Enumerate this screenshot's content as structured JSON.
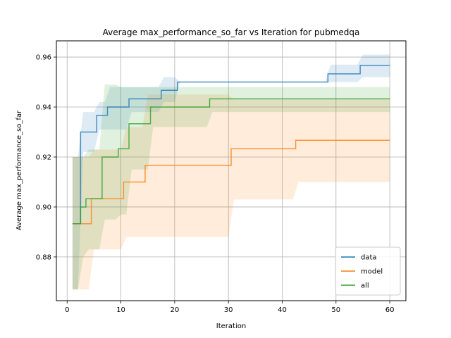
{
  "chart_data": {
    "type": "line",
    "title": "Average max_performance_so_far vs Iteration for pubmedqa",
    "xlabel": "Iteration",
    "ylabel": "Average max_performance_so_far",
    "xlim": [
      -2,
      63
    ],
    "ylim": [
      0.8625,
      0.9665
    ],
    "xticks": [
      0,
      10,
      20,
      30,
      40,
      50,
      60
    ],
    "yticks": [
      0.88,
      0.9,
      0.92,
      0.94,
      0.96
    ],
    "ytick_labels": [
      "0.88",
      "0.90",
      "0.92",
      "0.94",
      "0.96"
    ],
    "grid": true,
    "legend_position": "lower-right",
    "series": [
      {
        "name": "data",
        "color": "#1f77b4",
        "x": [
          1,
          2,
          3,
          4,
          5,
          6,
          7,
          8,
          9,
          10,
          11,
          12,
          13,
          14,
          15,
          16,
          17,
          18,
          19,
          20,
          21,
          22,
          23,
          24,
          25,
          26,
          27,
          28,
          29,
          30,
          31,
          32,
          33,
          34,
          35,
          36,
          37,
          38,
          39,
          40,
          41,
          42,
          43,
          44,
          45,
          46,
          47,
          48,
          49,
          50,
          51,
          52,
          53,
          54,
          55,
          56,
          57,
          58,
          59,
          60
        ],
        "y": [
          0.8933,
          0.8933,
          0.93,
          0.93,
          0.93,
          0.9367,
          0.9367,
          0.94,
          0.94,
          0.94,
          0.94,
          0.9433,
          0.9433,
          0.9433,
          0.9433,
          0.9433,
          0.9433,
          0.9467,
          0.9467,
          0.9467,
          0.95,
          0.95,
          0.95,
          0.95,
          0.95,
          0.95,
          0.95,
          0.95,
          0.95,
          0.95,
          0.95,
          0.95,
          0.95,
          0.95,
          0.95,
          0.95,
          0.95,
          0.95,
          0.95,
          0.95,
          0.95,
          0.95,
          0.95,
          0.95,
          0.95,
          0.95,
          0.95,
          0.95,
          0.9533,
          0.9533,
          0.9533,
          0.9533,
          0.9533,
          0.9533,
          0.9567,
          0.9567,
          0.9567,
          0.9567,
          0.9567,
          0.9567
        ],
        "lower": [
          0.867,
          0.867,
          0.922,
          0.922,
          0.922,
          0.931,
          0.931,
          0.931,
          0.931,
          0.931,
          0.931,
          0.938,
          0.938,
          0.938,
          0.938,
          0.938,
          0.938,
          0.942,
          0.942,
          0.942,
          0.95,
          0.95,
          0.95,
          0.95,
          0.95,
          0.95,
          0.95,
          0.95,
          0.95,
          0.95,
          0.95,
          0.95,
          0.95,
          0.95,
          0.95,
          0.95,
          0.95,
          0.95,
          0.95,
          0.95,
          0.95,
          0.95,
          0.95,
          0.95,
          0.95,
          0.95,
          0.95,
          0.95,
          0.95,
          0.95,
          0.95,
          0.95,
          0.95,
          0.95,
          0.952,
          0.952,
          0.952,
          0.952,
          0.952,
          0.952
        ],
        "upper": [
          0.92,
          0.92,
          0.938,
          0.938,
          0.938,
          0.942,
          0.942,
          0.948,
          0.948,
          0.948,
          0.948,
          0.948,
          0.948,
          0.948,
          0.948,
          0.948,
          0.948,
          0.952,
          0.952,
          0.952,
          0.95,
          0.95,
          0.95,
          0.95,
          0.95,
          0.95,
          0.95,
          0.95,
          0.95,
          0.95,
          0.95,
          0.95,
          0.95,
          0.95,
          0.95,
          0.95,
          0.95,
          0.95,
          0.95,
          0.95,
          0.95,
          0.95,
          0.95,
          0.95,
          0.95,
          0.95,
          0.95,
          0.95,
          0.957,
          0.957,
          0.957,
          0.957,
          0.957,
          0.957,
          0.961,
          0.961,
          0.961,
          0.961,
          0.961,
          0.961
        ]
      },
      {
        "name": "model",
        "color": "#ff7f0e",
        "x": [
          1,
          2,
          3,
          4,
          5,
          6,
          7,
          8,
          9,
          10,
          11,
          12,
          13,
          14,
          15,
          16,
          17,
          18,
          19,
          20,
          21,
          22,
          23,
          24,
          25,
          26,
          27,
          28,
          29,
          30,
          31,
          32,
          33,
          34,
          35,
          36,
          37,
          38,
          39,
          40,
          41,
          42,
          43,
          44,
          45,
          46,
          47,
          48,
          49,
          50,
          51,
          52,
          53,
          54,
          55,
          56,
          57,
          58,
          59,
          60
        ],
        "y": [
          0.8933,
          0.8933,
          0.8933,
          0.8933,
          0.9033,
          0.9033,
          0.9033,
          0.9033,
          0.9033,
          0.9033,
          0.91,
          0.91,
          0.91,
          0.91,
          0.9167,
          0.9167,
          0.9167,
          0.9167,
          0.9167,
          0.9167,
          0.9167,
          0.9167,
          0.9167,
          0.9167,
          0.9167,
          0.9167,
          0.9167,
          0.9167,
          0.9167,
          0.9167,
          0.9233,
          0.9233,
          0.9233,
          0.9233,
          0.9233,
          0.9233,
          0.9233,
          0.9233,
          0.9233,
          0.9233,
          0.9233,
          0.9233,
          0.9267,
          0.9267,
          0.9267,
          0.9267,
          0.9267,
          0.9267,
          0.9267,
          0.9267,
          0.9267,
          0.9267,
          0.9267,
          0.9267,
          0.9267,
          0.9267,
          0.9267,
          0.9267,
          0.9267,
          0.9267
        ],
        "lower": [
          0.867,
          0.867,
          0.867,
          0.867,
          0.883,
          0.883,
          0.883,
          0.883,
          0.883,
          0.883,
          0.888,
          0.888,
          0.888,
          0.888,
          0.888,
          0.888,
          0.888,
          0.888,
          0.888,
          0.888,
          0.888,
          0.888,
          0.888,
          0.888,
          0.888,
          0.888,
          0.888,
          0.888,
          0.888,
          0.888,
          0.903,
          0.903,
          0.903,
          0.903,
          0.903,
          0.903,
          0.903,
          0.903,
          0.903,
          0.903,
          0.903,
          0.903,
          0.91,
          0.91,
          0.91,
          0.91,
          0.91,
          0.91,
          0.91,
          0.91,
          0.91,
          0.91,
          0.91,
          0.91,
          0.91,
          0.91,
          0.91,
          0.91,
          0.91,
          0.91
        ],
        "upper": [
          0.92,
          0.92,
          0.92,
          0.92,
          0.923,
          0.923,
          0.923,
          0.923,
          0.923,
          0.923,
          0.932,
          0.932,
          0.932,
          0.932,
          0.945,
          0.945,
          0.945,
          0.945,
          0.945,
          0.945,
          0.945,
          0.945,
          0.945,
          0.945,
          0.945,
          0.945,
          0.945,
          0.945,
          0.945,
          0.945,
          0.943,
          0.943,
          0.943,
          0.943,
          0.943,
          0.943,
          0.943,
          0.943,
          0.943,
          0.943,
          0.943,
          0.943,
          0.943,
          0.943,
          0.943,
          0.943,
          0.943,
          0.943,
          0.943,
          0.943,
          0.943,
          0.943,
          0.943,
          0.943,
          0.943,
          0.943,
          0.943,
          0.943,
          0.943,
          0.943
        ]
      },
      {
        "name": "all",
        "color": "#2ca02c",
        "x": [
          1,
          2,
          3,
          4,
          5,
          6,
          7,
          8,
          9,
          10,
          11,
          12,
          13,
          14,
          15,
          16,
          17,
          18,
          19,
          20,
          21,
          22,
          23,
          24,
          25,
          26,
          27,
          28,
          29,
          30,
          31,
          32,
          33,
          34,
          35,
          36,
          37,
          38,
          39,
          40,
          41,
          42,
          43,
          44,
          45,
          46,
          47,
          48,
          49,
          50,
          51,
          52,
          53,
          54,
          55,
          56,
          57,
          58,
          59,
          60
        ],
        "y": [
          0.8933,
          0.8933,
          0.9,
          0.9033,
          0.9033,
          0.9033,
          0.92,
          0.92,
          0.92,
          0.9233,
          0.9233,
          0.9333,
          0.9333,
          0.9333,
          0.9333,
          0.94,
          0.94,
          0.94,
          0.94,
          0.94,
          0.94,
          0.94,
          0.94,
          0.94,
          0.94,
          0.94,
          0.9433,
          0.9433,
          0.9433,
          0.9433,
          0.9433,
          0.9433,
          0.9433,
          0.9433,
          0.9433,
          0.9433,
          0.9433,
          0.9433,
          0.9433,
          0.9433,
          0.9433,
          0.9433,
          0.9433,
          0.9433,
          0.9433,
          0.9433,
          0.9433,
          0.9433,
          0.9433,
          0.9433,
          0.9433,
          0.9433,
          0.9433,
          0.9433,
          0.9433,
          0.9433,
          0.9433,
          0.9433,
          0.9433,
          0.9433
        ],
        "lower": [
          0.867,
          0.867,
          0.88,
          0.883,
          0.883,
          0.883,
          0.895,
          0.895,
          0.895,
          0.897,
          0.897,
          0.915,
          0.915,
          0.915,
          0.915,
          0.932,
          0.932,
          0.932,
          0.932,
          0.932,
          0.932,
          0.932,
          0.932,
          0.932,
          0.932,
          0.932,
          0.938,
          0.938,
          0.938,
          0.938,
          0.938,
          0.938,
          0.938,
          0.938,
          0.938,
          0.938,
          0.938,
          0.938,
          0.938,
          0.938,
          0.938,
          0.938,
          0.938,
          0.938,
          0.938,
          0.938,
          0.938,
          0.938,
          0.938,
          0.938,
          0.938,
          0.938,
          0.938,
          0.938,
          0.938,
          0.938,
          0.938,
          0.938,
          0.938,
          0.938
        ],
        "upper": [
          0.92,
          0.92,
          0.92,
          0.923,
          0.923,
          0.923,
          0.949,
          0.949,
          0.949,
          0.948,
          0.948,
          0.948,
          0.948,
          0.948,
          0.948,
          0.948,
          0.948,
          0.948,
          0.948,
          0.948,
          0.948,
          0.948,
          0.948,
          0.948,
          0.948,
          0.948,
          0.948,
          0.948,
          0.948,
          0.948,
          0.948,
          0.948,
          0.948,
          0.948,
          0.948,
          0.948,
          0.948,
          0.948,
          0.948,
          0.948,
          0.948,
          0.948,
          0.948,
          0.948,
          0.948,
          0.948,
          0.948,
          0.948,
          0.948,
          0.948,
          0.948,
          0.948,
          0.948,
          0.948,
          0.948,
          0.948,
          0.948,
          0.948,
          0.948,
          0.948
        ]
      }
    ]
  }
}
